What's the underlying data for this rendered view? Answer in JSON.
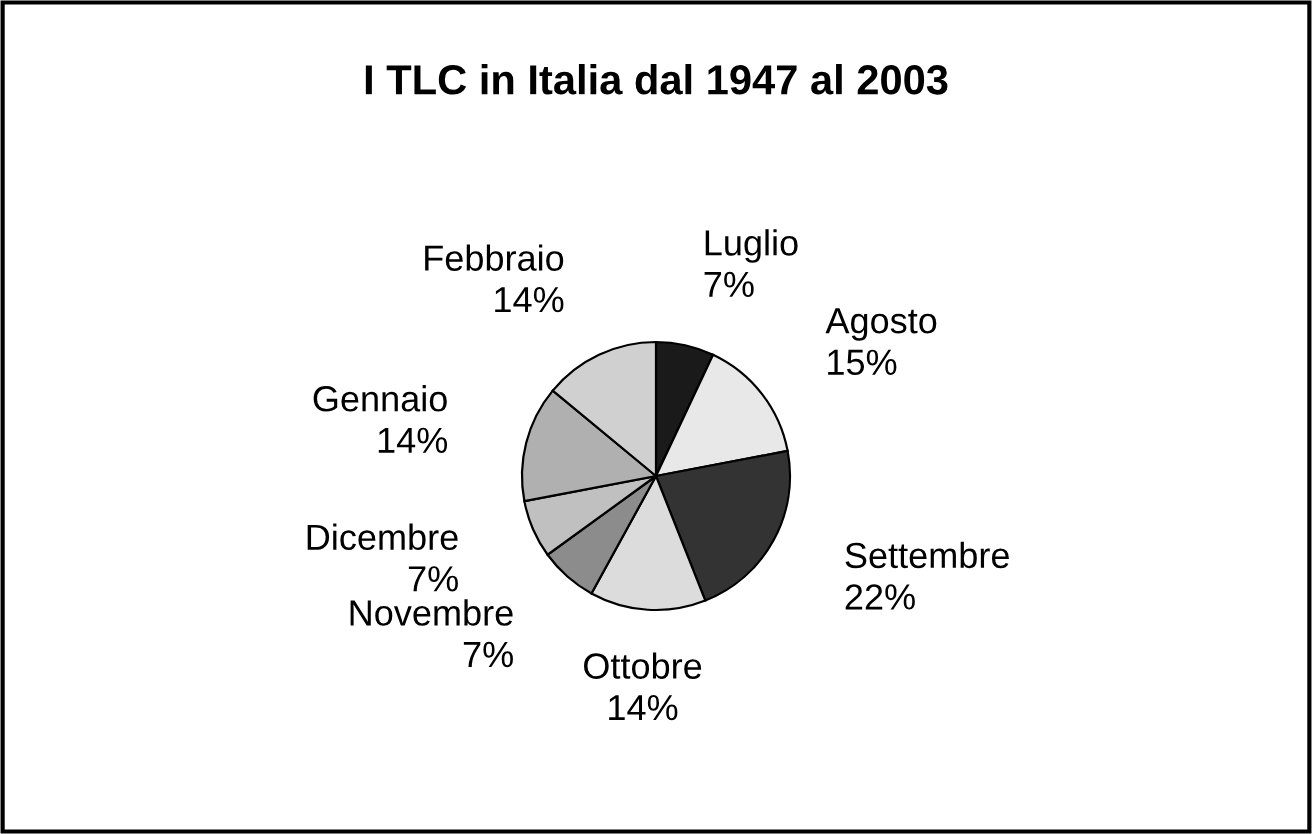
{
  "chart_data": {
    "type": "pie",
    "title": "I TLC in Italia dal 1947 al 2003",
    "categories": [
      "Luglio",
      "Agosto",
      "Settembre",
      "Ottobre",
      "Novembre",
      "Dicembre",
      "Gennaio",
      "Febbraio"
    ],
    "values": [
      7,
      15,
      22,
      14,
      7,
      7,
      14,
      14
    ],
    "value_labels": [
      "7%",
      "15%",
      "22%",
      "14%",
      "7%",
      "7%",
      "14%",
      "14%"
    ],
    "colors": [
      "#1a1a1a",
      "#e8e8e8",
      "#333333",
      "#dcdcdc",
      "#8c8c8c",
      "#c0c0c0",
      "#b0b0b0",
      "#d0d0d0"
    ]
  }
}
